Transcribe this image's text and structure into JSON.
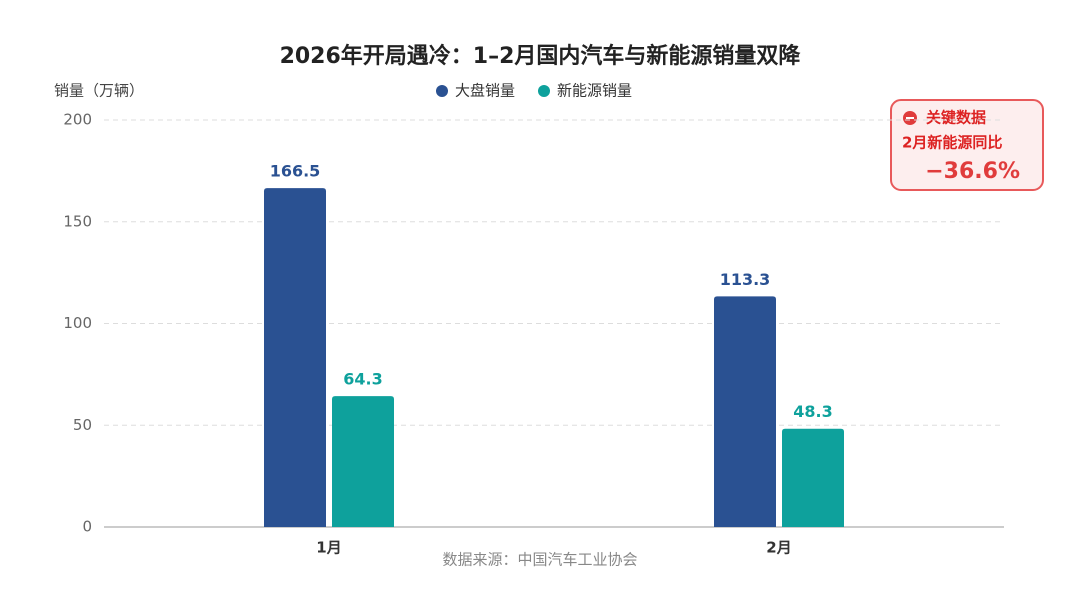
{
  "chart_data": {
    "type": "bar",
    "title": "2026年开局遇冷：1–2月国内汽车与新能源销量双降",
    "y_label": "销量（万辆）",
    "source": "数据来源：中国汽车工业协会",
    "categories": [
      "1月",
      "2月"
    ],
    "series": [
      {
        "name": "大盘销量",
        "color": "#2a5192",
        "values": [
          166.5,
          113.3
        ]
      },
      {
        "name": "新能源销量",
        "color": "#0ea19c",
        "values": [
          64.3,
          48.3
        ]
      }
    ],
    "ylim": [
      0,
      200
    ],
    "yticks": [
      0,
      50,
      100,
      150,
      200
    ],
    "grid": true,
    "annotation": {
      "title": "关键数据",
      "label": "2月新能源同比",
      "value": "−36.6%"
    }
  }
}
